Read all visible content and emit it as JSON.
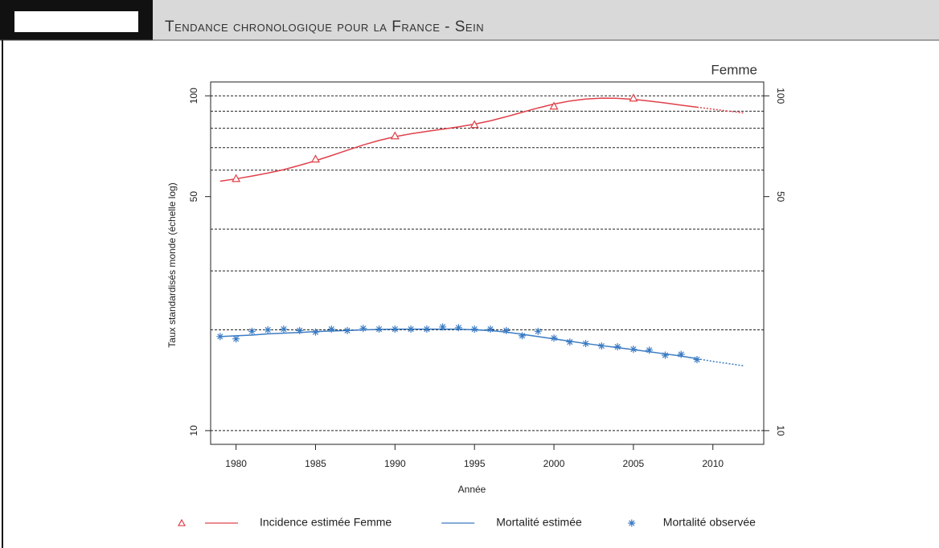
{
  "header": {
    "title": "Tendance chronologique pour la France - Sein"
  },
  "chart_data": {
    "type": "line",
    "subtitle": "Femme",
    "x_label": "Année",
    "y_label": "Taux standardisés monde (échelle log)",
    "log_scale_y": true,
    "xlim": [
      1978.4,
      2013.2
    ],
    "xticks": [
      1980,
      1985,
      1990,
      1995,
      2000,
      2005,
      2010
    ],
    "ylim": [
      9.1,
      110
    ],
    "yticks": [
      10,
      50,
      100
    ],
    "grid_lines": [
      10,
      20,
      30,
      40,
      60,
      70,
      80,
      90,
      100
    ],
    "extrapolated_from": 2009,
    "legend": "bottom",
    "x": [
      1979,
      1980,
      1981,
      1982,
      1983,
      1984,
      1985,
      1986,
      1987,
      1988,
      1989,
      1990,
      1991,
      1992,
      1993,
      1994,
      1995,
      1996,
      1997,
      1998,
      1999,
      2000,
      2001,
      2002,
      2003,
      2004,
      2005,
      2006,
      2007,
      2008,
      2009,
      2010,
      2011,
      2012
    ],
    "series": [
      {
        "name": "Incidence estimée Femme",
        "color": "#e0404a",
        "style": "line",
        "marker": "triangle",
        "values": [
          55.6,
          56.5,
          57.6,
          58.8,
          60.2,
          62.0,
          64.0,
          66.3,
          68.8,
          71.3,
          73.6,
          75.5,
          77.0,
          78.3,
          79.5,
          80.8,
          82.3,
          84.2,
          86.6,
          89.3,
          92.0,
          94.5,
          96.5,
          97.8,
          98.4,
          98.3,
          97.6,
          96.5,
          95.2,
          93.8,
          92.5,
          91.2,
          90.0,
          88.8
        ],
        "points": {
          "x": [
            1980,
            1985,
            1990,
            1995,
            2000,
            2005
          ],
          "values": [
            56.6,
            64.7,
            75.9,
            82.0,
            93.1,
            98.4
          ]
        }
      },
      {
        "name": "Mortalité estimée",
        "color": "#3b7cc4",
        "style": "line",
        "values": [
          19.1,
          19.2,
          19.3,
          19.45,
          19.55,
          19.65,
          19.75,
          19.85,
          19.9,
          20.0,
          20.05,
          20.1,
          20.1,
          20.1,
          20.1,
          20.1,
          20.0,
          19.9,
          19.7,
          19.4,
          19.1,
          18.8,
          18.5,
          18.2,
          17.95,
          17.7,
          17.45,
          17.2,
          16.95,
          16.7,
          16.4,
          16.1,
          15.85,
          15.6
        ]
      },
      {
        "name": "Mortalité observée",
        "color": "#3b7cc4",
        "style": "points",
        "marker": "star",
        "x": [
          1979,
          1980,
          1981,
          1982,
          1983,
          1984,
          1985,
          1986,
          1987,
          1988,
          1989,
          1990,
          1991,
          1992,
          1993,
          1994,
          1995,
          1996,
          1997,
          1998,
          1999,
          2000,
          2001,
          2002,
          2003,
          2004,
          2005,
          2006,
          2007,
          2008,
          2009
        ],
        "values": [
          19.1,
          18.8,
          19.8,
          20.0,
          20.1,
          19.9,
          19.7,
          20.1,
          19.9,
          20.2,
          20.1,
          20.1,
          20.1,
          20.1,
          20.4,
          20.3,
          20.1,
          20.1,
          19.9,
          19.2,
          19.8,
          18.9,
          18.4,
          18.2,
          17.9,
          17.8,
          17.5,
          17.4,
          16.8,
          16.9,
          16.3
        ]
      }
    ]
  }
}
